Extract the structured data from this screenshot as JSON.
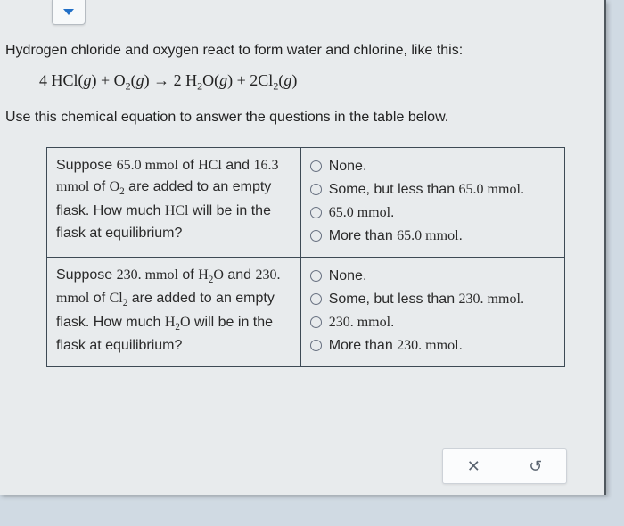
{
  "intro": "Hydrogen chloride and oxygen react to form water and chlorine, like this:",
  "equation_html": "4 HCl(<i>g</i>) + O<sub>2</sub>(<i>g</i>) → 2 H<sub>2</sub>O(<i>g</i>) + 2Cl<sub>2</sub>(<i>g</i>)",
  "instruction": "Use this chemical equation to answer the questions in the table below.",
  "questions": [
    {
      "prompt_html": "Suppose <span class='serif-num'>65.0 mmol</span> of <span class='chemfrag'>HCl</span> and <span class='serif-num'>16.3 mmol</span> of <span class='chemfrag'>O<sub>2</sub></span> are added to an empty flask. How much <span class='chemfrag'>HCl</span> will be in the flask at equilibrium?",
      "options": [
        "None.",
        "Some, but less than <span class='serif-num'>65.0 mmol</span>.",
        "<span class='serif-num'>65.0 mmol</span>.",
        "More than <span class='serif-num'>65.0 mmol</span>."
      ]
    },
    {
      "prompt_html": "Suppose <span class='serif-num'>230. mmol</span> of <span class='chemfrag'>H<sub>2</sub>O</span> and <span class='serif-num'>230. mmol</span> of <span class='chemfrag'>Cl<sub>2</sub></span> are added to an empty flask. How much <span class='chemfrag'>H<sub>2</sub>O</span> will be in the flask at equilibrium?",
      "options": [
        "None.",
        "Some, but less than <span class='serif-num'>230. mmol</span>.",
        "<span class='serif-num'>230. mmol</span>.",
        "More than <span class='serif-num'>230. mmol</span>."
      ]
    }
  ],
  "buttons": {
    "clear": "✕",
    "reset": "↺"
  },
  "colors": {
    "page_bg": "#d0dae3",
    "panel_bg": "#e8ebed",
    "border": "#3d4a55",
    "chevron": "#2270c7"
  }
}
